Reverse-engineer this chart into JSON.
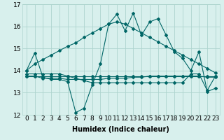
{
  "xlabel": "Humidex (Indice chaleur)",
  "background_color": "#d8f0ed",
  "grid_color": "#aed4ce",
  "line_color": "#006666",
  "xlim": [
    -0.5,
    23.5
  ],
  "ylim": [
    12,
    17
  ],
  "xticks": [
    0,
    1,
    2,
    3,
    4,
    5,
    6,
    7,
    8,
    9,
    10,
    11,
    12,
    13,
    14,
    15,
    16,
    17,
    18,
    19,
    20,
    21,
    22,
    23
  ],
  "yticks": [
    12,
    13,
    14,
    15,
    16,
    17
  ],
  "series": [
    [
      14.0,
      14.8,
      13.7,
      13.6,
      13.6,
      13.5,
      12.1,
      12.3,
      13.35,
      14.3,
      16.1,
      16.55,
      15.8,
      16.6,
      15.6,
      16.2,
      16.35,
      15.6,
      14.85,
      14.55,
      14.0,
      14.85,
      13.05,
      13.2
    ],
    [
      14.0,
      14.3,
      14.5,
      14.7,
      14.9,
      15.1,
      15.25,
      15.5,
      15.7,
      15.9,
      16.1,
      16.2,
      16.1,
      15.9,
      15.7,
      15.5,
      15.3,
      15.1,
      14.9,
      14.7,
      14.5,
      14.3,
      14.1,
      13.9
    ],
    [
      13.75,
      13.75,
      13.65,
      13.65,
      13.65,
      13.6,
      13.6,
      13.6,
      13.6,
      13.6,
      13.65,
      13.65,
      13.65,
      13.7,
      13.7,
      13.75,
      13.75,
      13.75,
      13.75,
      13.75,
      13.75,
      13.75,
      13.7,
      13.7
    ],
    [
      13.75,
      13.75,
      13.75,
      13.75,
      13.75,
      13.75,
      13.75,
      13.75,
      13.75,
      13.75,
      13.75,
      13.75,
      13.75,
      13.75,
      13.75,
      13.75,
      13.75,
      13.75,
      13.75,
      13.75,
      13.75,
      13.75,
      13.75,
      13.75
    ],
    [
      13.85,
      13.85,
      13.85,
      13.85,
      13.85,
      13.75,
      13.65,
      13.55,
      13.45,
      13.45,
      13.45,
      13.45,
      13.45,
      13.45,
      13.45,
      13.45,
      13.45,
      13.45,
      13.45,
      13.45,
      13.85,
      13.85,
      13.1,
      13.75
    ]
  ],
  "marker": "D",
  "marker_size": 2.0,
  "linewidth": 0.8,
  "font_size_xlabel": 7,
  "tick_fontsize": 6.5
}
